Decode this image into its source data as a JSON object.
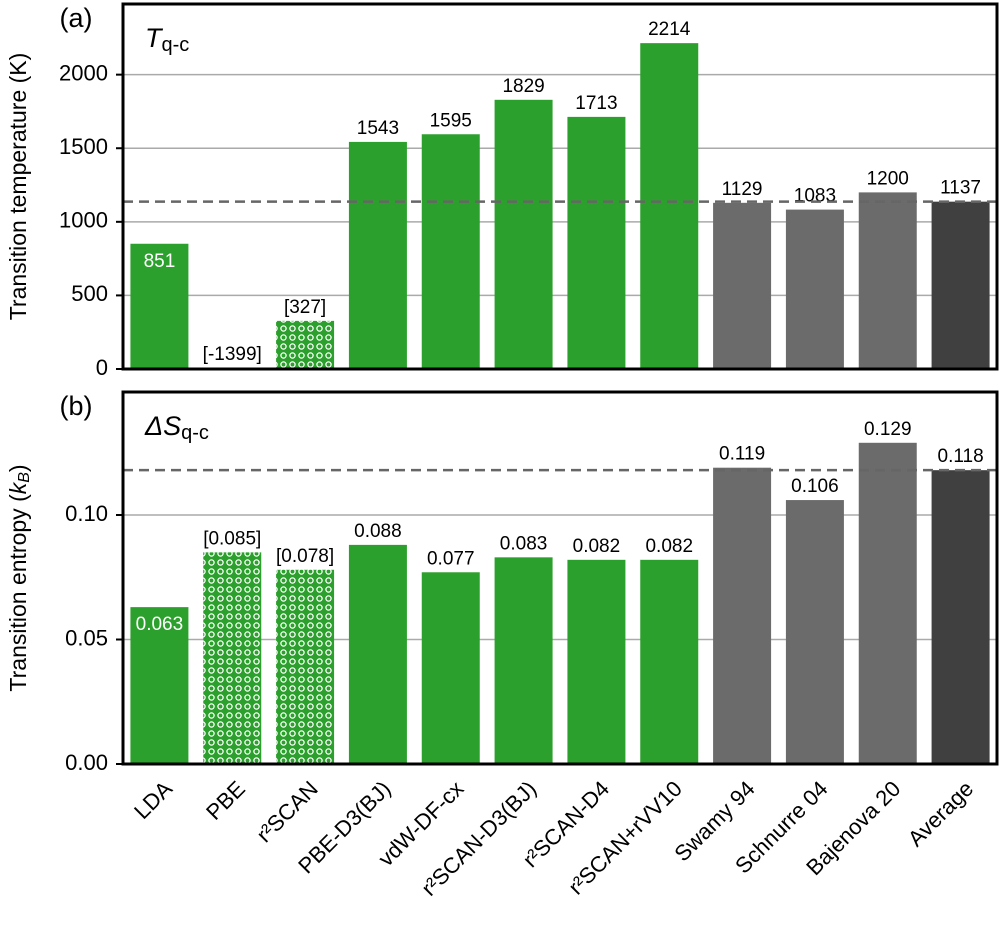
{
  "chart_data": [
    {
      "type": "bar",
      "panel_label": "(a)",
      "title": "T",
      "title_sub": "q-c",
      "ylabel": "Transition temperature (K)",
      "values": [
        851,
        -1399,
        327,
        1543,
        1595,
        1829,
        1713,
        2214,
        1129,
        1083,
        1200,
        1137
      ],
      "value_labels": [
        "851",
        "[-1399]",
        "[327]",
        "1543",
        "1595",
        "1829",
        "1713",
        "2214",
        "1129",
        "1083",
        "1200",
        "1137"
      ],
      "colors": [
        "#2ca02c",
        "#2ca02c",
        "#2ca02c",
        "#2ca02c",
        "#2ca02c",
        "#2ca02c",
        "#2ca02c",
        "#2ca02c",
        "#6b6b6b",
        "#6b6b6b",
        "#6b6b6b",
        "#404040"
      ],
      "hatched": [
        false,
        true,
        true,
        false,
        false,
        false,
        false,
        false,
        false,
        false,
        false,
        false
      ],
      "label_inside": [
        0
      ],
      "dashed_line": 1137,
      "ylim": [
        0,
        2480
      ],
      "yticks": [
        0,
        500,
        1000,
        1500,
        2000
      ],
      "grid": true
    },
    {
      "type": "bar",
      "panel_label": "(b)",
      "title": "ΔS",
      "title_sub": "q-c",
      "ylabel": "Transition entropy (",
      "ylabel_sym": "k",
      "ylabel_sub": "B",
      "ylabel_end": ")",
      "categories": [
        "LDA",
        "PBE",
        "r²SCAN",
        "PBE-D3(BJ)",
        "vdW-DF-cx",
        "r²SCAN-D3(BJ)",
        "r²SCAN-D4",
        "r²SCAN+rVV10",
        "Swamy 94",
        "Schnurre 04",
        "Bajenova 20",
        "Average"
      ],
      "values": [
        0.063,
        0.085,
        0.078,
        0.088,
        0.077,
        0.083,
        0.082,
        0.082,
        0.119,
        0.106,
        0.129,
        0.118
      ],
      "value_labels": [
        "0.063",
        "[0.085]",
        "[0.078]",
        "0.088",
        "0.077",
        "0.083",
        "0.082",
        "0.082",
        "0.119",
        "0.106",
        "0.129",
        "0.118"
      ],
      "colors": [
        "#2ca02c",
        "#2ca02c",
        "#2ca02c",
        "#2ca02c",
        "#2ca02c",
        "#2ca02c",
        "#2ca02c",
        "#2ca02c",
        "#6b6b6b",
        "#6b6b6b",
        "#6b6b6b",
        "#404040"
      ],
      "hatched": [
        false,
        true,
        true,
        false,
        false,
        false,
        false,
        false,
        false,
        false,
        false,
        false
      ],
      "label_inside": [
        0
      ],
      "dashed_line": 0.118,
      "ylim": [
        0,
        0.1494
      ],
      "yticks": [
        {
          "value": 0,
          "label": "0.00"
        },
        {
          "value": 0.05,
          "label": "0.05"
        },
        {
          "value": 0.1,
          "label": "0.10"
        }
      ],
      "grid": true
    }
  ]
}
